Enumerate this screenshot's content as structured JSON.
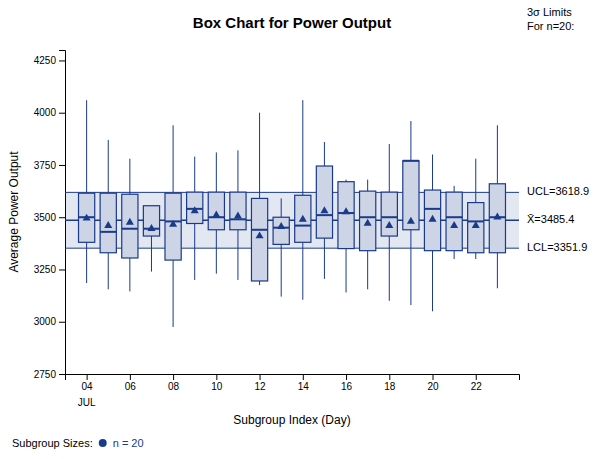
{
  "chart_data": {
    "type": "box",
    "title": "Box Chart for Power Output",
    "xlabel": "Subgroup Index (Day)",
    "ylabel": "Average Power Output",
    "xlim": [
      3,
      24
    ],
    "xticks": [
      {
        "value": 4,
        "label": "04"
      },
      {
        "value": 6,
        "label": "06"
      },
      {
        "value": 8,
        "label": "08"
      },
      {
        "value": 10,
        "label": "10"
      },
      {
        "value": 12,
        "label": "12"
      },
      {
        "value": 14,
        "label": "14"
      },
      {
        "value": 16,
        "label": "16"
      },
      {
        "value": 18,
        "label": "18"
      },
      {
        "value": 20,
        "label": "20"
      },
      {
        "value": 22,
        "label": "22"
      }
    ],
    "ylim": [
      2750,
      4300
    ],
    "yticks": [
      2750,
      3000,
      3250,
      3500,
      3750,
      4000,
      4250
    ],
    "grid": false,
    "color": "#1a3a8a",
    "control_limits": [
      {
        "value": 3618.9,
        "label": "UCL=3618.9"
      },
      {
        "value": 3485.4,
        "label": "X̄=3485.4"
      },
      {
        "value": 3351.9,
        "label": "LCL=3351.9"
      }
    ],
    "annotations": [
      "JUL",
      "3σ Limits",
      "For n=20:",
      "Subgroup Sizes:",
      "n = 20"
    ],
    "boxes": [
      {
        "x": 4,
        "q1": 3380,
        "median": 3500,
        "q3": 3615,
        "whislo": 3185,
        "whishi": 4060,
        "mean": 3495
      },
      {
        "x": 5,
        "q1": 3330,
        "median": 3430,
        "q3": 3615,
        "whislo": 3155,
        "whishi": 3870,
        "mean": 3460
      },
      {
        "x": 6,
        "q1": 3305,
        "median": 3445,
        "q3": 3610,
        "whislo": 3145,
        "whishi": 3780,
        "mean": 3475
      },
      {
        "x": 7,
        "q1": 3410,
        "median": 3445,
        "q3": 3555,
        "whislo": 3240,
        "whishi": 3530,
        "mean": 3445
      },
      {
        "x": 8,
        "q1": 3295,
        "median": 3480,
        "q3": 3615,
        "whislo": 2975,
        "whishi": 3940,
        "mean": 3465
      },
      {
        "x": 9,
        "q1": 3470,
        "median": 3540,
        "q3": 3620,
        "whislo": 3200,
        "whishi": 3790,
        "mean": 3530
      },
      {
        "x": 10,
        "q1": 3440,
        "median": 3500,
        "q3": 3620,
        "whislo": 3230,
        "whishi": 3810,
        "mean": 3510
      },
      {
        "x": 11,
        "q1": 3440,
        "median": 3490,
        "q3": 3620,
        "whislo": 3200,
        "whishi": 3820,
        "mean": 3505
      },
      {
        "x": 12,
        "q1": 3195,
        "median": 3440,
        "q3": 3590,
        "whislo": 3175,
        "whishi": 4000,
        "mean": 3410
      },
      {
        "x": 13,
        "q1": 3370,
        "median": 3450,
        "q3": 3500,
        "whislo": 3120,
        "whishi": 3590,
        "mean": 3455
      },
      {
        "x": 14,
        "q1": 3380,
        "median": 3460,
        "q3": 3605,
        "whislo": 3105,
        "whishi": 4060,
        "mean": 3490
      },
      {
        "x": 15,
        "q1": 3400,
        "median": 3510,
        "q3": 3745,
        "whislo": 3205,
        "whishi": 3860,
        "mean": 3530
      },
      {
        "x": 16,
        "q1": 3350,
        "median": 3520,
        "q3": 3670,
        "whislo": 3140,
        "whishi": 3680,
        "mean": 3525
      },
      {
        "x": 17,
        "q1": 3340,
        "median": 3500,
        "q3": 3625,
        "whislo": 3155,
        "whishi": 3680,
        "mean": 3470
      },
      {
        "x": 18,
        "q1": 3410,
        "median": 3500,
        "q3": 3620,
        "whislo": 3100,
        "whishi": 3850,
        "mean": 3460
      },
      {
        "x": 19,
        "q1": 3440,
        "median": 3770,
        "q3": 3770,
        "whislo": 3080,
        "whishi": 3960,
        "mean": 3480
      },
      {
        "x": 20,
        "q1": 3340,
        "median": 3540,
        "q3": 3630,
        "whislo": 3050,
        "whishi": 3800,
        "mean": 3490
      },
      {
        "x": 21,
        "q1": 3340,
        "median": 3500,
        "q3": 3620,
        "whislo": 3300,
        "whishi": 3650,
        "mean": 3460
      },
      {
        "x": 22,
        "q1": 3330,
        "median": 3480,
        "q3": 3570,
        "whislo": 3300,
        "whishi": 3780,
        "mean": 3460
      },
      {
        "x": 23,
        "q1": 3330,
        "median": 3500,
        "q3": 3660,
        "whislo": 3160,
        "whishi": 3940,
        "mean": 3500
      }
    ]
  }
}
